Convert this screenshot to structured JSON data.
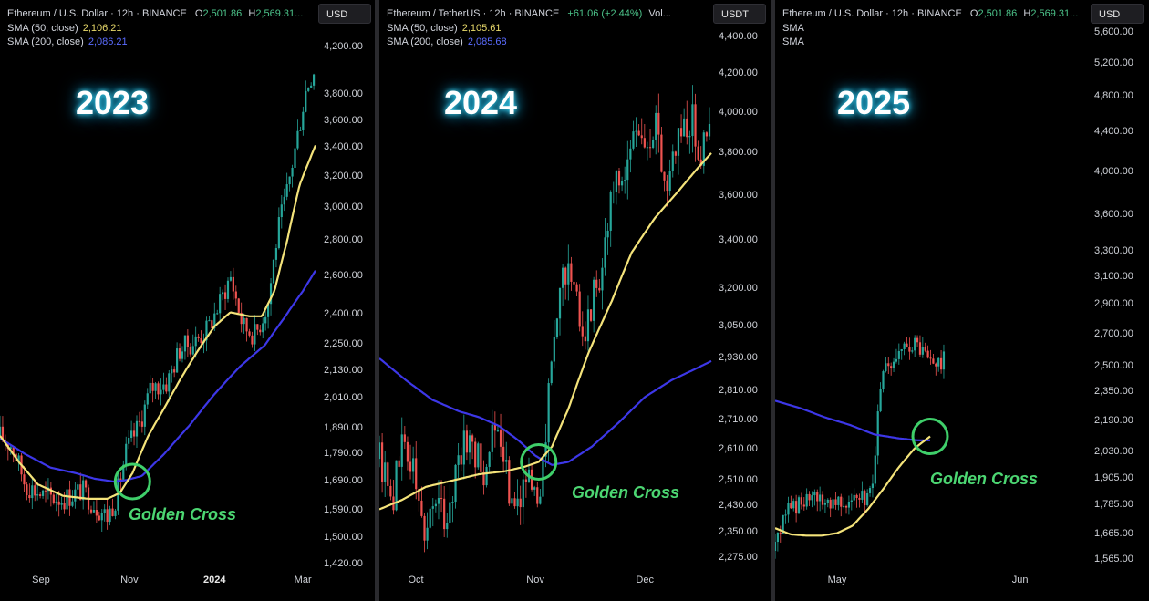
{
  "colors": {
    "up": "#26a69a",
    "down": "#ef5350",
    "sma50": "#f4e37a",
    "sma200": "#3d37e8",
    "cross": "#3fcf6a"
  },
  "chart_data": [
    {
      "type": "candlestick",
      "year_label": "2023",
      "header": {
        "symbol": "Ethereum / U.S. Dollar · 12h · BINANCE",
        "o_label": "O",
        "o_value": "2,501.86",
        "h_label": "H",
        "h_value": "2,569.31...",
        "sma50_label": "SMA (50, close)",
        "sma50_value": "2,106.21",
        "sma200_label": "SMA (200, close)",
        "sma200_value": "2,086.21"
      },
      "currency": "USD",
      "y_ticks": [
        "4,200.00",
        "3,800.00",
        "3,600.00",
        "3,400.00",
        "3,200.00",
        "3,000.00",
        "2,800.00",
        "2,600.00",
        "2,400.00",
        "2,250.00",
        "2,130.00",
        "2,010.00",
        "1,890.00",
        "1,790.00",
        "1,690.00",
        "1,590.00",
        "1,500.00",
        "1,420.00"
      ],
      "y_tick_values": [
        4200,
        3800,
        3600,
        3400,
        3200,
        3000,
        2800,
        2600,
        2400,
        2250,
        2130,
        2010,
        1890,
        1790,
        1690,
        1590,
        1500,
        1420
      ],
      "x_ticks": [
        {
          "label": "Sep",
          "bold": false
        },
        {
          "label": "Nov",
          "bold": false
        },
        {
          "label": "2024",
          "bold": true
        },
        {
          "label": "Mar",
          "bold": false
        }
      ],
      "x_tick_t": [
        0.13,
        0.41,
        0.68,
        0.96
      ],
      "x_range": [
        "2023-08-15",
        "2024-03-12"
      ],
      "price_path": [
        [
          0,
          1860
        ],
        [
          0.04,
          1820
        ],
        [
          0.08,
          1680
        ],
        [
          0.14,
          1640
        ],
        [
          0.2,
          1630
        ],
        [
          0.26,
          1660
        ],
        [
          0.3,
          1610
        ],
        [
          0.34,
          1570
        ],
        [
          0.37,
          1640
        ],
        [
          0.4,
          1800
        ],
        [
          0.44,
          1900
        ],
        [
          0.48,
          2060
        ],
        [
          0.53,
          2080
        ],
        [
          0.57,
          2230
        ],
        [
          0.62,
          2270
        ],
        [
          0.66,
          2330
        ],
        [
          0.7,
          2470
        ],
        [
          0.73,
          2600
        ],
        [
          0.77,
          2340
        ],
        [
          0.81,
          2300
        ],
        [
          0.85,
          2460
        ],
        [
          0.88,
          2850
        ],
        [
          0.91,
          3100
        ],
        [
          0.94,
          3450
        ],
        [
          0.97,
          3850
        ],
        [
          1.0,
          4050
        ]
      ],
      "sma50_path": [
        [
          0,
          1860
        ],
        [
          0.06,
          1760
        ],
        [
          0.12,
          1680
        ],
        [
          0.2,
          1640
        ],
        [
          0.28,
          1630
        ],
        [
          0.34,
          1630
        ],
        [
          0.38,
          1650
        ],
        [
          0.42,
          1720
        ],
        [
          0.47,
          1860
        ],
        [
          0.52,
          1970
        ],
        [
          0.57,
          2090
        ],
        [
          0.63,
          2230
        ],
        [
          0.68,
          2340
        ],
        [
          0.73,
          2410
        ],
        [
          0.79,
          2390
        ],
        [
          0.83,
          2390
        ],
        [
          0.87,
          2520
        ],
        [
          0.91,
          2800
        ],
        [
          0.95,
          3150
        ],
        [
          1.0,
          3420
        ]
      ],
      "sma200_path": [
        [
          0,
          1850
        ],
        [
          0.08,
          1790
        ],
        [
          0.16,
          1740
        ],
        [
          0.24,
          1720
        ],
        [
          0.3,
          1700
        ],
        [
          0.36,
          1690
        ],
        [
          0.4,
          1695
        ],
        [
          0.45,
          1710
        ],
        [
          0.52,
          1790
        ],
        [
          0.6,
          1900
        ],
        [
          0.68,
          2030
        ],
        [
          0.76,
          2150
        ],
        [
          0.84,
          2250
        ],
        [
          0.9,
          2380
        ],
        [
          0.96,
          2520
        ],
        [
          1.0,
          2630
        ]
      ],
      "cross": {
        "t": 0.42,
        "price": 1690
      },
      "golden_cross_label": "Golden Cross"
    },
    {
      "type": "candlestick",
      "year_label": "2024",
      "header": {
        "symbol": "Ethereum / TetherUS · 12h · BINANCE",
        "change": "+61.06 (+2.44%)",
        "vol": "Vol...",
        "sma50_label": "SMA (50, close)",
        "sma50_value": "2,105.61",
        "sma200_label": "SMA (200, close)",
        "sma200_value": "2,085.68"
      },
      "currency": "USDT",
      "y_ticks": [
        "4,400.00",
        "4,200.00",
        "4,000.00",
        "3,800.00",
        "3,600.00",
        "3,400.00",
        "3,200.00",
        "3,050.00",
        "2,930.00",
        "2,810.00",
        "2,710.00",
        "2,610.00",
        "2,510.00",
        "2,430.00",
        "2,350.00",
        "2,275.00"
      ],
      "y_tick_values": [
        4400,
        4200,
        4000,
        3800,
        3600,
        3400,
        3200,
        3050,
        2930,
        2810,
        2710,
        2610,
        2510,
        2430,
        2350,
        2275
      ],
      "x_ticks": [
        {
          "label": "Oct",
          "bold": false
        },
        {
          "label": "Nov",
          "bold": false
        },
        {
          "label": "Dec",
          "bold": false
        }
      ],
      "x_tick_t": [
        0.11,
        0.47,
        0.8
      ],
      "x_range": [
        "2024-09-21",
        "2024-12-20"
      ],
      "price_path": [
        [
          0,
          2580
        ],
        [
          0.04,
          2460
        ],
        [
          0.07,
          2640
        ],
        [
          0.1,
          2560
        ],
        [
          0.13,
          2360
        ],
        [
          0.17,
          2450
        ],
        [
          0.2,
          2380
        ],
        [
          0.24,
          2600
        ],
        [
          0.28,
          2640
        ],
        [
          0.31,
          2520
        ],
        [
          0.34,
          2680
        ],
        [
          0.37,
          2560
        ],
        [
          0.41,
          2440
        ],
        [
          0.44,
          2530
        ],
        [
          0.47,
          2420
        ],
        [
          0.5,
          2620
        ],
        [
          0.52,
          2950
        ],
        [
          0.56,
          3300
        ],
        [
          0.59,
          3150
        ],
        [
          0.62,
          3050
        ],
        [
          0.64,
          3150
        ],
        [
          0.67,
          3300
        ],
        [
          0.7,
          3600
        ],
        [
          0.74,
          3700
        ],
        [
          0.78,
          3950
        ],
        [
          0.81,
          3800
        ],
        [
          0.84,
          3950
        ],
        [
          0.86,
          3650
        ],
        [
          0.9,
          3900
        ],
        [
          0.94,
          3980
        ],
        [
          0.97,
          3800
        ],
        [
          1.0,
          3950
        ]
      ],
      "sma50_path": [
        [
          0,
          2420
        ],
        [
          0.07,
          2450
        ],
        [
          0.14,
          2490
        ],
        [
          0.22,
          2510
        ],
        [
          0.3,
          2530
        ],
        [
          0.38,
          2540
        ],
        [
          0.44,
          2555
        ],
        [
          0.48,
          2570
        ],
        [
          0.52,
          2620
        ],
        [
          0.57,
          2750
        ],
        [
          0.63,
          2950
        ],
        [
          0.7,
          3150
        ],
        [
          0.76,
          3350
        ],
        [
          0.83,
          3500
        ],
        [
          0.9,
          3620
        ],
        [
          0.96,
          3730
        ],
        [
          1.0,
          3800
        ]
      ],
      "sma200_path": [
        [
          0,
          2930
        ],
        [
          0.08,
          2850
        ],
        [
          0.16,
          2780
        ],
        [
          0.24,
          2740
        ],
        [
          0.3,
          2720
        ],
        [
          0.36,
          2690
        ],
        [
          0.42,
          2640
        ],
        [
          0.47,
          2590
        ],
        [
          0.52,
          2560
        ],
        [
          0.57,
          2570
        ],
        [
          0.64,
          2620
        ],
        [
          0.72,
          2700
        ],
        [
          0.8,
          2790
        ],
        [
          0.88,
          2850
        ],
        [
          0.95,
          2890
        ],
        [
          1.0,
          2920
        ]
      ],
      "cross": {
        "t": 0.48,
        "price": 2570
      },
      "golden_cross_label": "Golden Cross"
    },
    {
      "type": "candlestick",
      "year_label": "2025",
      "header": {
        "symbol": "Ethereum / U.S. Dollar · 12h · BINANCE",
        "o_label": "O",
        "o_value": "2,501.86",
        "h_label": "H",
        "h_value": "2,569.31...",
        "sma50_label": "SMA",
        "sma200_label": "SMA"
      },
      "currency": "USD",
      "y_ticks": [
        "5,600.00",
        "5,200.00",
        "4,800.00",
        "4,400.00",
        "4,000.00",
        "3,600.00",
        "3,300.00",
        "3,100.00",
        "2,900.00",
        "2,700.00",
        "2,500.00",
        "2,350.00",
        "2,190.00",
        "2,030.00",
        "1,905.00",
        "1,785.00",
        "1,665.00",
        "1,565.00"
      ],
      "y_tick_values": [
        5600,
        5200,
        4800,
        4400,
        4000,
        3600,
        3300,
        3100,
        2900,
        2700,
        2500,
        2350,
        2190,
        2030,
        1905,
        1785,
        1665,
        1565
      ],
      "x_ticks": [
        {
          "label": "May",
          "bold": false
        },
        {
          "label": "Jun",
          "bold": false
        }
      ],
      "x_tick_t": [
        0.2,
        0.79
      ],
      "x_range": [
        "2025-04-16",
        "2025-06-15"
      ],
      "price_path": [
        [
          0,
          1600
        ],
        [
          0.03,
          1760
        ],
        [
          0.07,
          1790
        ],
        [
          0.12,
          1800
        ],
        [
          0.17,
          1810
        ],
        [
          0.22,
          1820
        ],
        [
          0.27,
          1800
        ],
        [
          0.31,
          1830
        ],
        [
          0.33,
          2190
        ],
        [
          0.35,
          2450
        ],
        [
          0.38,
          2520
        ],
        [
          0.41,
          2560
        ],
        [
          0.44,
          2650
        ],
        [
          0.47,
          2600
        ],
        [
          0.5,
          2520
        ],
        [
          0.53,
          2500
        ],
        [
          0.55,
          2540
        ]
      ],
      "sma50_path": [
        [
          0,
          1690
        ],
        [
          0.05,
          1665
        ],
        [
          0.1,
          1660
        ],
        [
          0.15,
          1660
        ],
        [
          0.2,
          1670
        ],
        [
          0.25,
          1700
        ],
        [
          0.3,
          1770
        ],
        [
          0.35,
          1860
        ],
        [
          0.4,
          1960
        ],
        [
          0.45,
          2050
        ],
        [
          0.5,
          2110
        ]
      ],
      "sma200_path": [
        [
          0,
          2300
        ],
        [
          0.08,
          2260
        ],
        [
          0.16,
          2210
        ],
        [
          0.24,
          2170
        ],
        [
          0.32,
          2120
        ],
        [
          0.4,
          2100
        ],
        [
          0.46,
          2090
        ],
        [
          0.5,
          2090
        ]
      ],
      "cross": {
        "t": 0.5,
        "price": 2110
      },
      "golden_cross_label": "Golden Cross"
    }
  ]
}
